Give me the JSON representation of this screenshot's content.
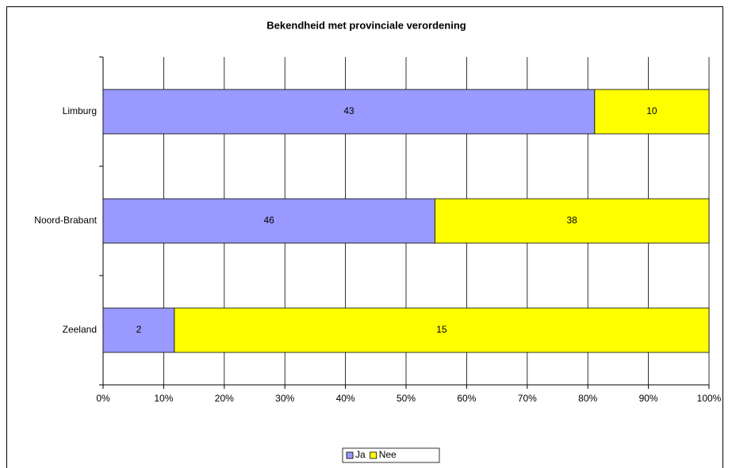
{
  "chart_data": {
    "type": "bar",
    "orientation": "horizontal",
    "stack": "percent",
    "title": "Bekendheid met provinciale verordening",
    "categories": [
      "Limburg",
      "Noord-Brabant",
      "Zeeland"
    ],
    "series": [
      {
        "name": "Ja",
        "color": "#9999ff",
        "values": [
          43,
          46,
          2
        ]
      },
      {
        "name": "Nee",
        "color": "#ffff00",
        "values": [
          10,
          38,
          15
        ]
      }
    ],
    "xlim": [
      0,
      100
    ],
    "xticks": [
      {
        "value": 0,
        "label": "0%"
      },
      {
        "value": 10,
        "label": "10%"
      },
      {
        "value": 20,
        "label": "20%"
      },
      {
        "value": 30,
        "label": "30%"
      },
      {
        "value": 40,
        "label": "40%"
      },
      {
        "value": 50,
        "label": "50%"
      },
      {
        "value": 60,
        "label": "60%"
      },
      {
        "value": 70,
        "label": "70%"
      },
      {
        "value": 80,
        "label": "80%"
      },
      {
        "value": 90,
        "label": "90%"
      },
      {
        "value": 100,
        "label": "100%"
      }
    ],
    "grid": true,
    "legend": "bottom"
  }
}
